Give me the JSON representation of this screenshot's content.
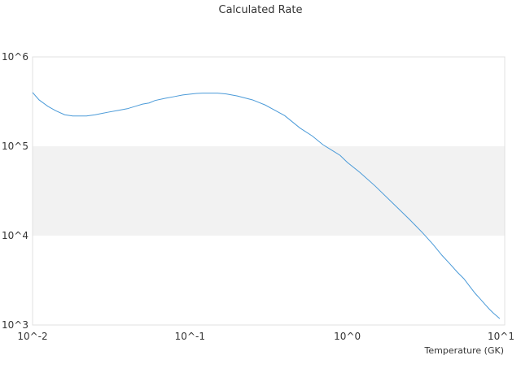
{
  "chart_data": {
    "type": "line",
    "title": "Calculated Rate",
    "xlabel": "Temperature (GK)",
    "ylabel": "",
    "x_scale": "log",
    "y_scale": "log",
    "xlim": [
      0.01,
      10
    ],
    "ylim": [
      1000,
      1000000
    ],
    "x_ticks": [
      {
        "value": 0.01,
        "label": "10^-2"
      },
      {
        "value": 0.1,
        "label": "10^-1"
      },
      {
        "value": 1,
        "label": "10^0"
      },
      {
        "value": 10,
        "label": "10^1"
      }
    ],
    "y_ticks": [
      {
        "value": 1000,
        "label": "10^3"
      },
      {
        "value": 10000,
        "label": "10^4"
      },
      {
        "value": 100000,
        "label": "10^5"
      },
      {
        "value": 1000000,
        "label": "10^6"
      }
    ],
    "shaded_band": {
      "from": 10000,
      "to": 100000,
      "color": "#f2f2f2"
    },
    "grid": false,
    "legend": "none",
    "series": [
      {
        "color": "#4a9ad8",
        "x": [
          0.01,
          0.011,
          0.0125,
          0.014,
          0.016,
          0.018,
          0.02,
          0.022,
          0.025,
          0.03,
          0.035,
          0.04,
          0.045,
          0.05,
          0.055,
          0.06,
          0.07,
          0.08,
          0.09,
          0.1,
          0.11,
          0.12,
          0.13,
          0.15,
          0.17,
          0.2,
          0.25,
          0.3,
          0.35,
          0.4,
          0.5,
          0.6,
          0.7,
          0.8,
          0.9,
          1.0,
          1.2,
          1.5,
          2,
          2.5,
          3,
          3.5,
          4,
          4.5,
          5,
          5.5,
          6,
          6.5,
          7,
          7.5,
          8,
          8.5,
          9,
          9.3
        ],
        "y": [
          400000,
          330000,
          280000,
          250000,
          225000,
          218000,
          218000,
          218000,
          225000,
          240000,
          252000,
          263000,
          280000,
          296000,
          305000,
          325000,
          345000,
          360000,
          375000,
          383000,
          390000,
          393000,
          393000,
          393000,
          385000,
          365000,
          330000,
          290000,
          250000,
          220000,
          160000,
          130000,
          104000,
          90000,
          79000,
          66000,
          51000,
          36000,
          22000,
          15000,
          10800,
          8000,
          6000,
          4800,
          3900,
          3300,
          2700,
          2250,
          1950,
          1700,
          1500,
          1350,
          1240,
          1180
        ]
      }
    ]
  }
}
